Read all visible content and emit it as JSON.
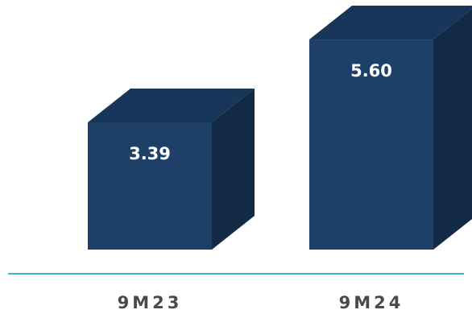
{
  "chart_data": {
    "type": "bar",
    "categories": [
      "9M23",
      "9M24"
    ],
    "values": [
      3.39,
      5.6
    ],
    "value_labels": [
      "3.39",
      "5.60"
    ],
    "title": "",
    "xlabel": "",
    "ylabel": "",
    "grid": false,
    "legend": "none",
    "style": "3d-box"
  },
  "colors": {
    "bar_front": "#1e4068",
    "bar_top": "#18365a",
    "bar_side": "#122a45",
    "baseline": "#3bb3d6",
    "category_text": "#4a4a4a",
    "value_text": "#ffffff"
  }
}
